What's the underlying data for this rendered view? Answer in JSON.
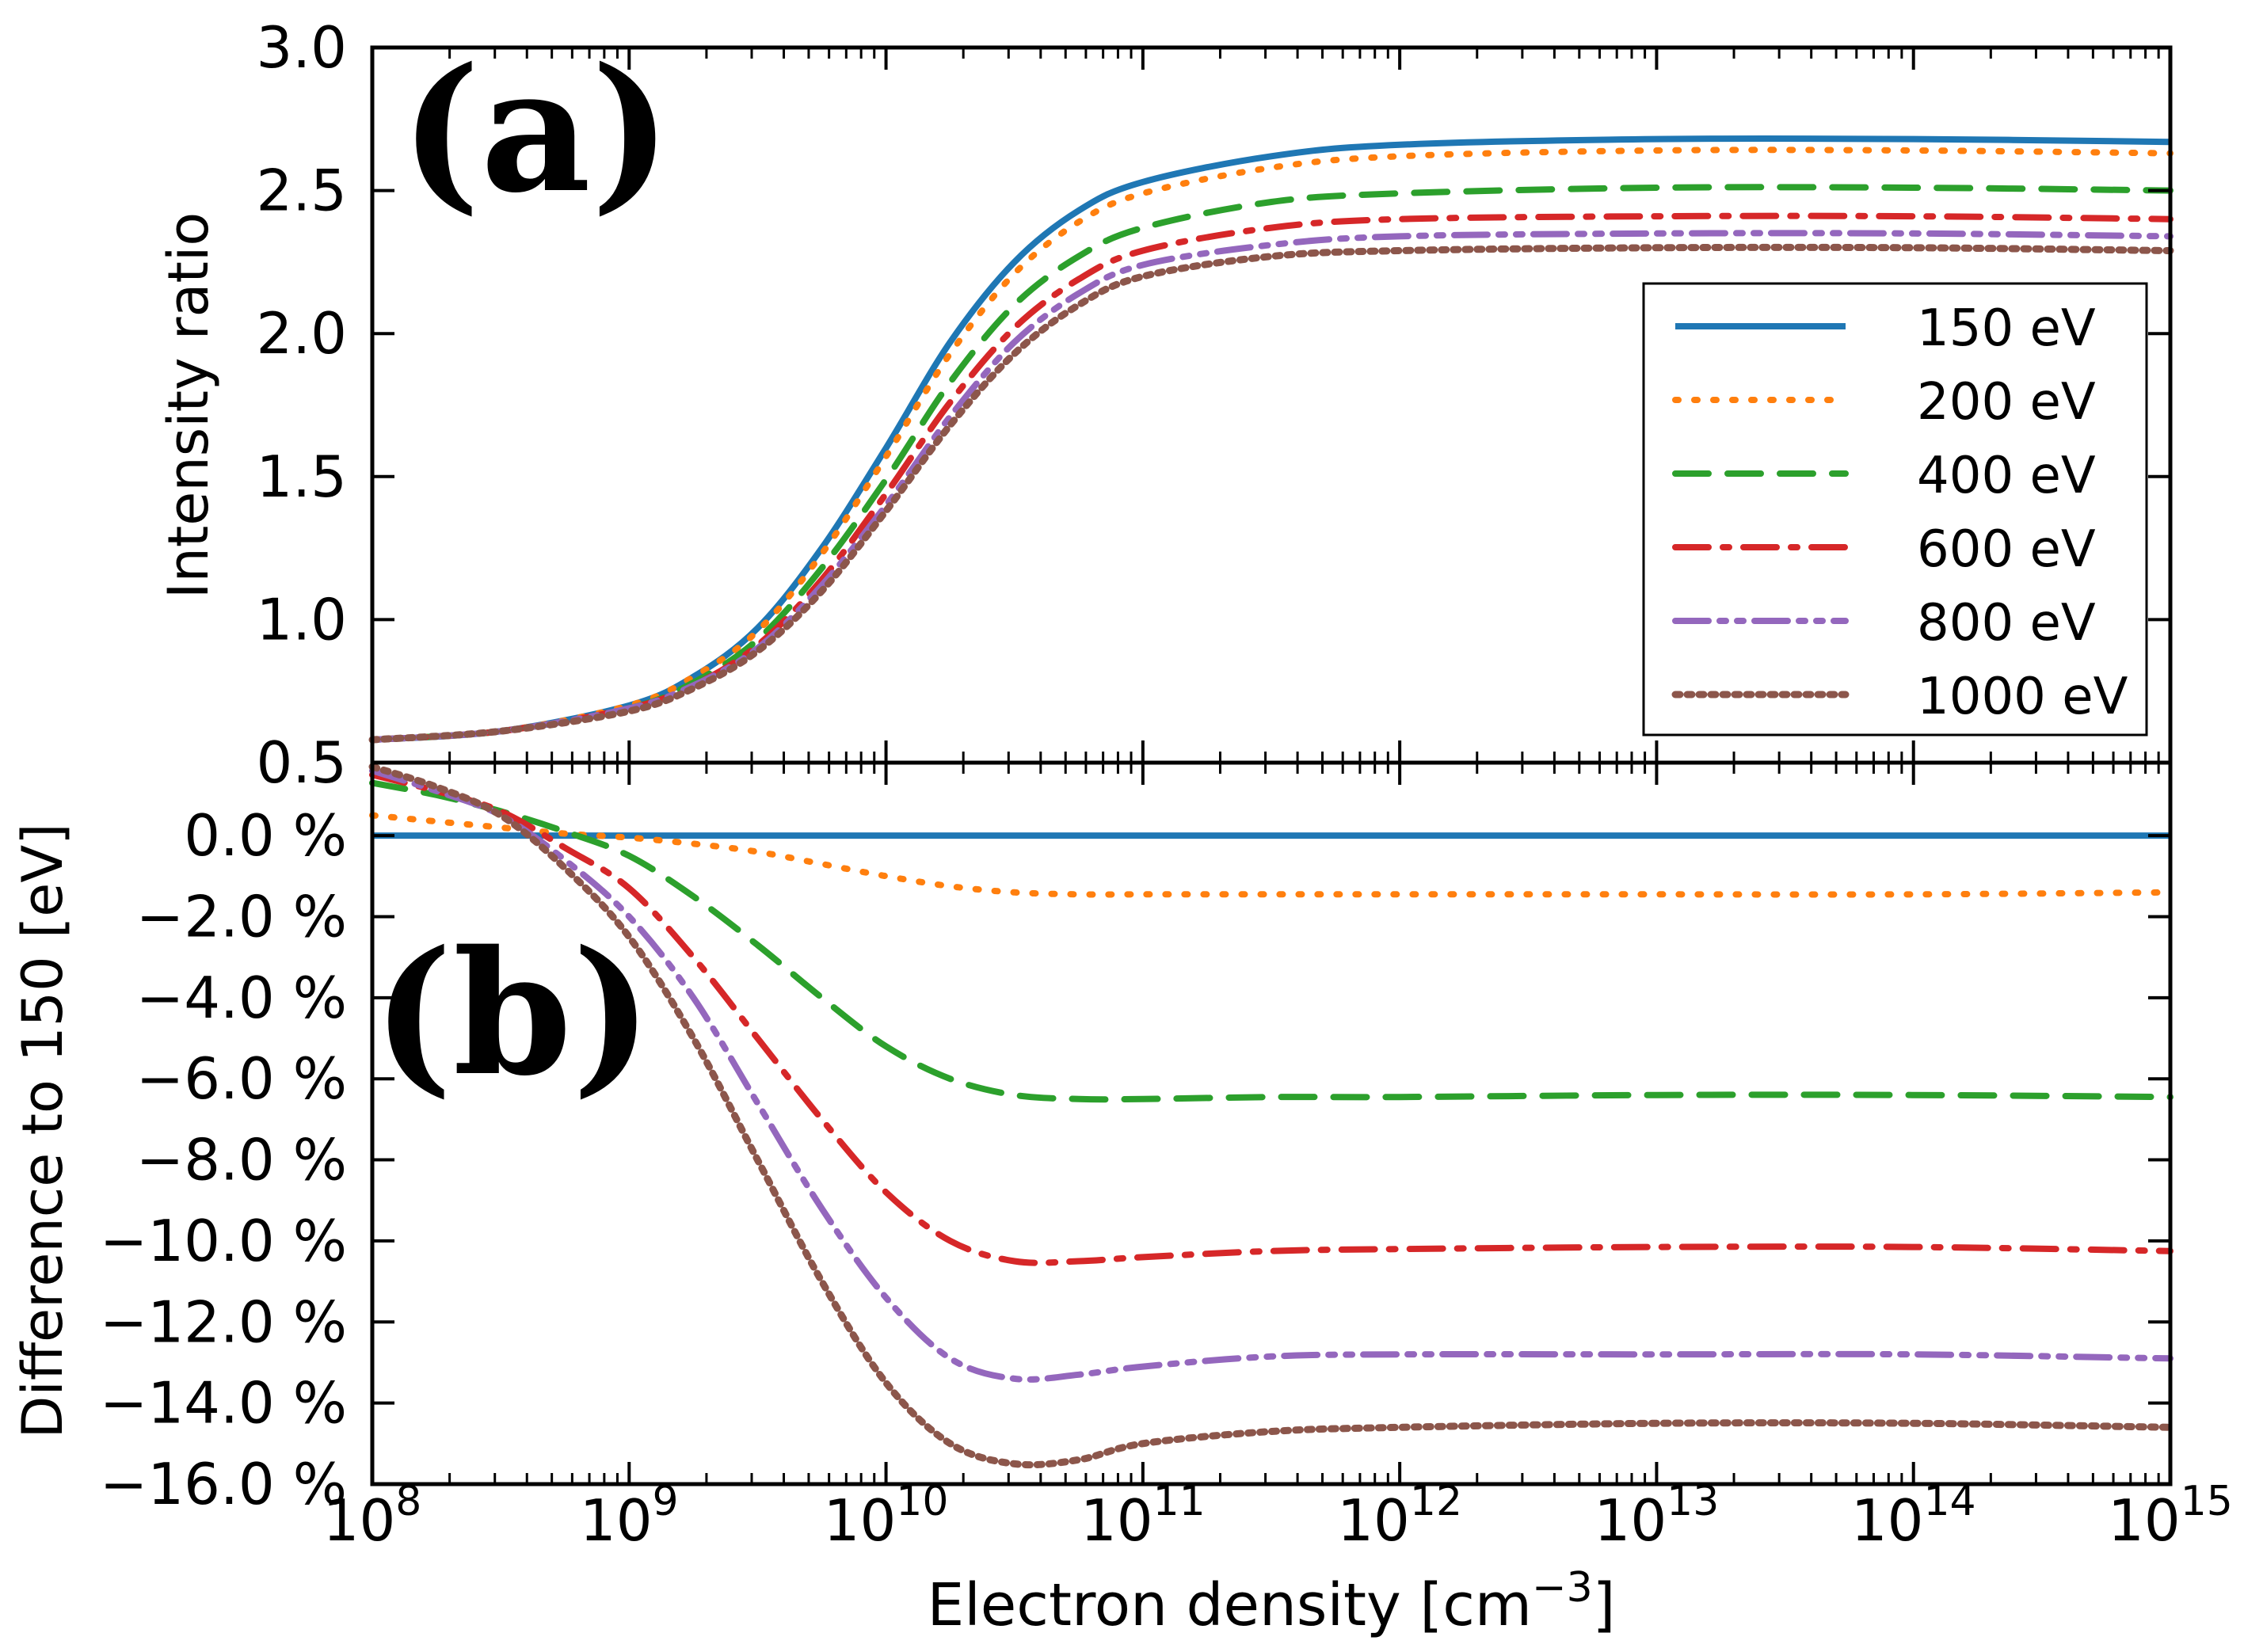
{
  "chart_data": [
    {
      "panel": "top",
      "panel_label": "(a)",
      "type": "line",
      "ylabel": "Intensity ratio",
      "xscale": "log",
      "xlim_exponent": [
        8,
        15
      ],
      "ylim": [
        0.5,
        3.0
      ],
      "yticks": [
        0.5,
        1.0,
        1.5,
        2.0,
        2.5,
        3.0
      ],
      "ytick_labels": [
        "0.5",
        "1.0",
        "1.5",
        "2.0",
        "2.5",
        "3.0"
      ],
      "legend_position": "right",
      "x_log10": [
        8,
        8.5,
        9,
        9.25,
        9.5,
        9.75,
        10,
        10.25,
        10.5,
        10.75,
        11,
        11.5,
        12,
        13,
        14,
        15
      ],
      "series": [
        {
          "name": "150 eV",
          "color": "#1f77b4",
          "style": "solid",
          "values": [
            0.58,
            0.61,
            0.7,
            0.8,
            0.97,
            1.25,
            1.6,
            1.97,
            2.25,
            2.43,
            2.53,
            2.62,
            2.66,
            2.68,
            2.68,
            2.67
          ]
        },
        {
          "name": "200 eV",
          "color": "#ff7f0e",
          "style": "dotted",
          "values": [
            0.58,
            0.61,
            0.7,
            0.8,
            0.96,
            1.23,
            1.57,
            1.93,
            2.21,
            2.39,
            2.49,
            2.58,
            2.62,
            2.64,
            2.64,
            2.63
          ]
        },
        {
          "name": "400 eV",
          "color": "#2ca02c",
          "style": "dashed",
          "values": [
            0.58,
            0.61,
            0.69,
            0.78,
            0.93,
            1.18,
            1.49,
            1.83,
            2.1,
            2.27,
            2.37,
            2.46,
            2.49,
            2.51,
            2.51,
            2.5
          ]
        },
        {
          "name": "600 eV",
          "color": "#d62728",
          "style": "dashdot",
          "values": [
            0.58,
            0.61,
            0.69,
            0.77,
            0.91,
            1.14,
            1.44,
            1.76,
            2.02,
            2.19,
            2.29,
            2.37,
            2.4,
            2.41,
            2.41,
            2.4
          ]
        },
        {
          "name": "800 eV",
          "color": "#9467bd",
          "style": "dashdotdot",
          "values": [
            0.58,
            0.61,
            0.69,
            0.77,
            0.9,
            1.12,
            1.4,
            1.71,
            1.97,
            2.14,
            2.24,
            2.31,
            2.34,
            2.35,
            2.35,
            2.34
          ]
        },
        {
          "name": "1000 eV",
          "color": "#8c564b",
          "style": "densedot",
          "values": [
            0.58,
            0.61,
            0.68,
            0.76,
            0.89,
            1.1,
            1.38,
            1.68,
            1.93,
            2.1,
            2.2,
            2.27,
            2.29,
            2.3,
            2.3,
            2.29
          ]
        }
      ]
    },
    {
      "panel": "bottom",
      "panel_label": "(b)",
      "type": "line",
      "ylabel": "Difference to  150  [eV]",
      "xlabel": "Electron density [cm",
      "xlabel_superscript": "−3",
      "xlabel_close": "]",
      "xscale": "log",
      "xlim_exponent": [
        8,
        15
      ],
      "ylim": [
        -16.0,
        1.8
      ],
      "yticks": [
        0,
        -2,
        -4,
        -6,
        -8,
        -10,
        -12,
        -14,
        -16
      ],
      "ytick_labels": [
        "0.0 %",
        "−2.0 %",
        "−4.0 %",
        "−6.0 %",
        "−8.0 %",
        "−10.0 %",
        "−12.0 %",
        "−14.0 %",
        "−16.0 %"
      ],
      "xtick_base": "10",
      "xtick_exponents": [
        "8",
        "9",
        "10",
        "11",
        "12",
        "13",
        "14",
        "15"
      ],
      "x_log10": [
        8,
        8.25,
        8.5,
        8.75,
        9,
        9.25,
        9.5,
        9.75,
        10,
        10.25,
        10.5,
        10.75,
        11,
        11.5,
        12,
        13,
        14,
        15
      ],
      "series": [
        {
          "name": "150 eV",
          "color": "#1f77b4",
          "style": "solid",
          "values": [
            0,
            0,
            0,
            0,
            0,
            0,
            0,
            0,
            0,
            0,
            0,
            0,
            0,
            0,
            0,
            0,
            0,
            0
          ]
        },
        {
          "name": "200 eV",
          "color": "#ff7f0e",
          "style": "dotted",
          "values": [
            0.5,
            0.35,
            0.2,
            0.05,
            -0.05,
            -0.2,
            -0.4,
            -0.7,
            -1.0,
            -1.25,
            -1.4,
            -1.45,
            -1.45,
            -1.45,
            -1.45,
            -1.45,
            -1.45,
            -1.4
          ]
        },
        {
          "name": "400 eV",
          "color": "#2ca02c",
          "style": "dashed",
          "values": [
            1.3,
            1.0,
            0.6,
            0.1,
            -0.5,
            -1.5,
            -2.7,
            -4.0,
            -5.2,
            -6.0,
            -6.4,
            -6.5,
            -6.5,
            -6.45,
            -6.45,
            -6.4,
            -6.4,
            -6.45
          ]
        },
        {
          "name": "600 eV",
          "color": "#d62728",
          "style": "dashdot",
          "values": [
            1.5,
            1.1,
            0.6,
            -0.3,
            -1.3,
            -3.0,
            -5.0,
            -7.0,
            -8.8,
            -10.0,
            -10.5,
            -10.5,
            -10.4,
            -10.25,
            -10.2,
            -10.15,
            -10.15,
            -10.25
          ]
        },
        {
          "name": "800 eV",
          "color": "#9467bd",
          "style": "dashdotdot",
          "values": [
            1.6,
            1.1,
            0.5,
            -0.6,
            -2.0,
            -4.0,
            -6.6,
            -9.2,
            -11.4,
            -12.9,
            -13.4,
            -13.3,
            -13.1,
            -12.85,
            -12.8,
            -12.8,
            -12.8,
            -12.9
          ]
        },
        {
          "name": "1000 eV",
          "color": "#8c564b",
          "style": "densedot",
          "values": [
            1.7,
            1.2,
            0.5,
            -0.8,
            -2.5,
            -5.0,
            -8.0,
            -11.0,
            -13.5,
            -15.0,
            -15.5,
            -15.4,
            -15.0,
            -14.7,
            -14.6,
            -14.5,
            -14.5,
            -14.6
          ]
        }
      ]
    }
  ]
}
